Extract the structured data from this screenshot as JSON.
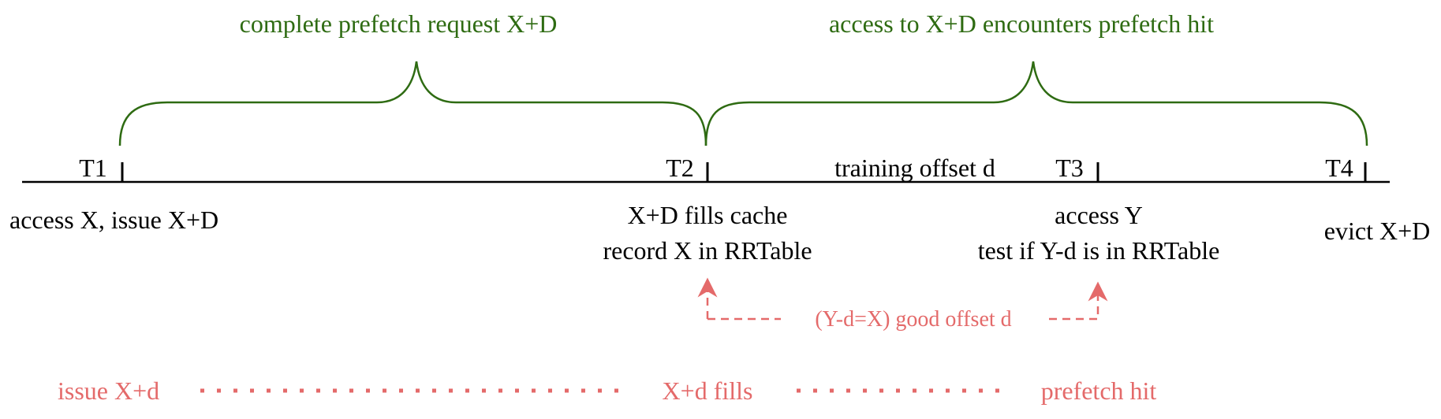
{
  "colors": {
    "line": "#000000",
    "brace": "#2e6b12",
    "annotation": "#e46a6a"
  },
  "braces": {
    "first": "complete prefetch request X+D",
    "second": "access to X+D encounters prefetch hit"
  },
  "timeline": {
    "ticks": [
      "T1",
      "T2",
      "T3",
      "T4"
    ],
    "segment_label": "training offset d"
  },
  "events": {
    "t1": "access X, issue X+D",
    "t2_line1": "X+D fills cache",
    "t2_line2": "record X in RRTable",
    "t3_line1": "access Y",
    "t3_line2": "test if Y-d is in RRTable",
    "t4": "evict X+D"
  },
  "annotations": {
    "offset_check": "(Y-d=X) good offset d",
    "issue": "issue X+d",
    "fills": "X+d fills",
    "hit": "prefetch hit"
  }
}
